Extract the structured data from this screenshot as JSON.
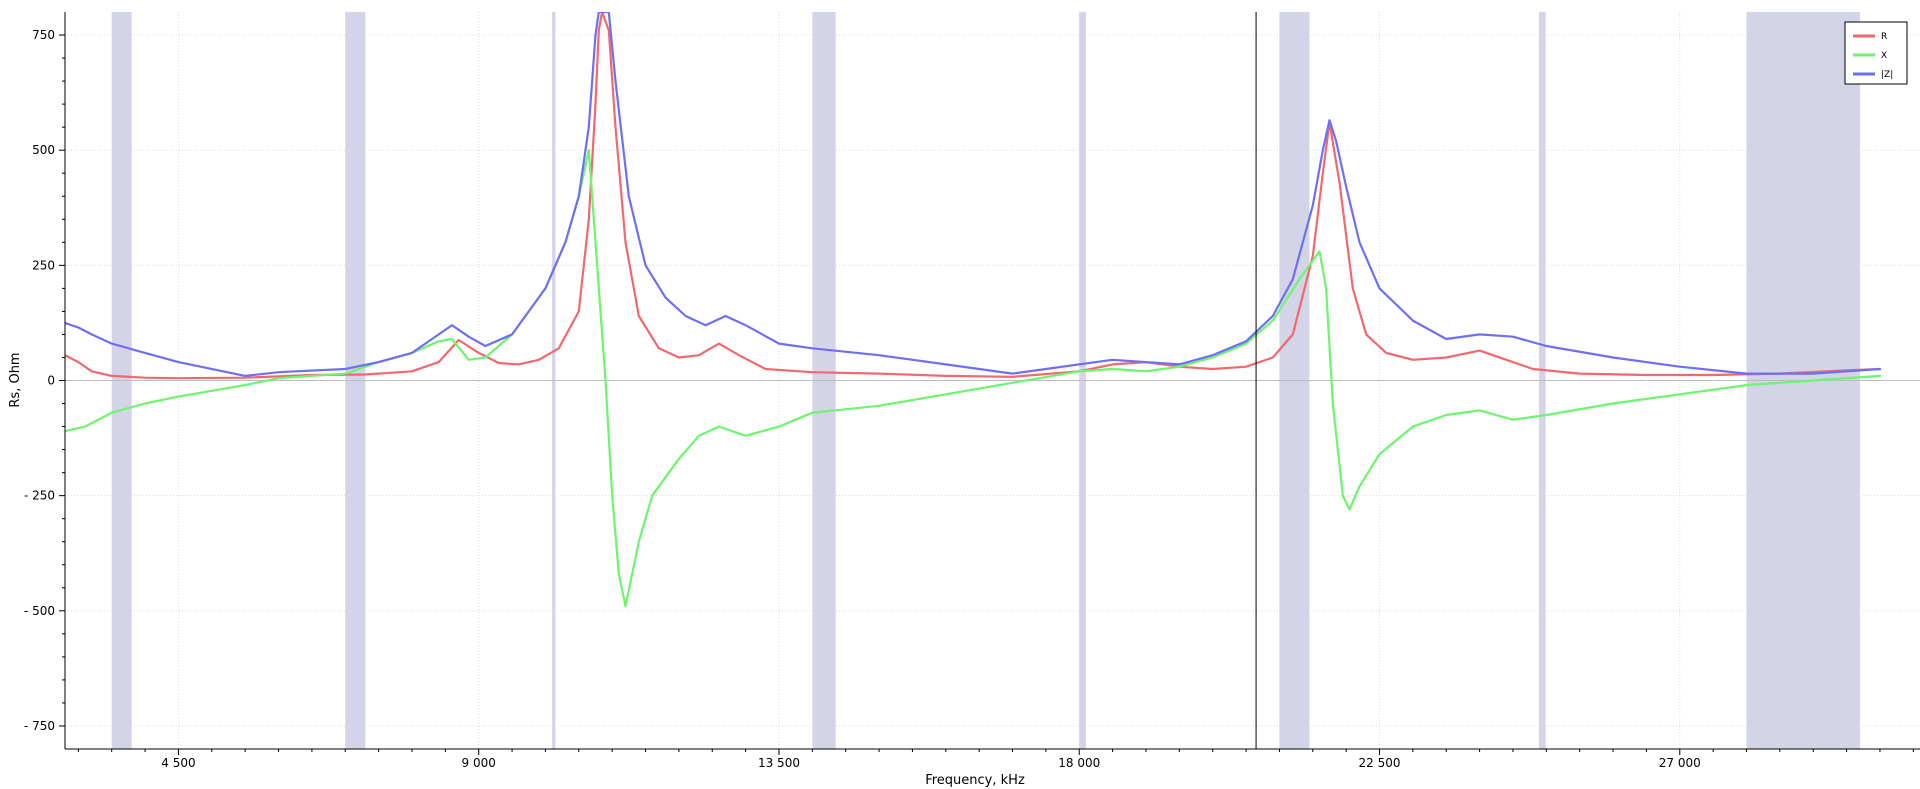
{
  "chart_data": {
    "type": "line",
    "xlabel": "Frequency, kHz",
    "ylabel": "Rs, Ohm",
    "xlim": [
      2800,
      30600
    ],
    "ylim": [
      -800,
      800
    ],
    "grid": true,
    "legend_position": "top-right",
    "x_ticks": [
      {
        "value": 4500,
        "label": "4 500"
      },
      {
        "value": 9000,
        "label": "9 000"
      },
      {
        "value": 13500,
        "label": "13 500"
      },
      {
        "value": 18000,
        "label": "18 000"
      },
      {
        "value": 22500,
        "label": "22 500"
      },
      {
        "value": 27000,
        "label": "27 000"
      }
    ],
    "y_ticks": [
      {
        "value": 750,
        "label": "750"
      },
      {
        "value": 500,
        "label": "500"
      },
      {
        "value": 250,
        "label": "250"
      },
      {
        "value": 0,
        "label": "0"
      },
      {
        "value": -250,
        "label": "- 250"
      },
      {
        "value": -500,
        "label": "- 500"
      },
      {
        "value": -750,
        "label": "- 750"
      }
    ],
    "bands": [
      [
        3500,
        3800
      ],
      [
        7000,
        7300
      ],
      [
        10100,
        10150
      ],
      [
        14000,
        14350
      ],
      [
        18000,
        18100
      ],
      [
        21000,
        21450
      ],
      [
        24890,
        24990
      ],
      [
        28000,
        29700
      ]
    ],
    "band_color": "#d3d4e8",
    "cursor_x": 20650,
    "series": [
      {
        "name": "R",
        "color": "#f2686e",
        "points": [
          [
            2800,
            55
          ],
          [
            3000,
            40
          ],
          [
            3200,
            20
          ],
          [
            3500,
            10
          ],
          [
            4000,
            6
          ],
          [
            4500,
            5
          ],
          [
            5500,
            6
          ],
          [
            6500,
            12
          ],
          [
            7300,
            13
          ],
          [
            8000,
            20
          ],
          [
            8400,
            40
          ],
          [
            8700,
            88
          ],
          [
            9000,
            60
          ],
          [
            9300,
            38
          ],
          [
            9600,
            35
          ],
          [
            9900,
            45
          ],
          [
            10200,
            70
          ],
          [
            10500,
            150
          ],
          [
            10650,
            350
          ],
          [
            10750,
            600
          ],
          [
            10800,
            760
          ],
          [
            10850,
            800
          ],
          [
            10950,
            760
          ],
          [
            11050,
            550
          ],
          [
            11200,
            300
          ],
          [
            11400,
            140
          ],
          [
            11700,
            70
          ],
          [
            12000,
            50
          ],
          [
            12300,
            55
          ],
          [
            12600,
            80
          ],
          [
            12900,
            55
          ],
          [
            13300,
            25
          ],
          [
            14000,
            18
          ],
          [
            15000,
            15
          ],
          [
            16000,
            10
          ],
          [
            17000,
            8
          ],
          [
            18000,
            20
          ],
          [
            18500,
            35
          ],
          [
            19000,
            40
          ],
          [
            19500,
            30
          ],
          [
            20000,
            25
          ],
          [
            20500,
            30
          ],
          [
            20900,
            50
          ],
          [
            21200,
            100
          ],
          [
            21500,
            270
          ],
          [
            21650,
            450
          ],
          [
            21750,
            560
          ],
          [
            21900,
            430
          ],
          [
            22100,
            200
          ],
          [
            22300,
            100
          ],
          [
            22600,
            60
          ],
          [
            23000,
            45
          ],
          [
            23500,
            50
          ],
          [
            24000,
            65
          ],
          [
            24400,
            45
          ],
          [
            24800,
            25
          ],
          [
            25500,
            15
          ],
          [
            26500,
            12
          ],
          [
            27500,
            12
          ],
          [
            28500,
            15
          ],
          [
            29500,
            22
          ],
          [
            30000,
            25
          ]
        ]
      },
      {
        "name": "X",
        "color": "#6ef56e",
        "points": [
          [
            2800,
            -110
          ],
          [
            3100,
            -100
          ],
          [
            3500,
            -70
          ],
          [
            4000,
            -50
          ],
          [
            4500,
            -35
          ],
          [
            5500,
            -10
          ],
          [
            6000,
            5
          ],
          [
            7000,
            15
          ],
          [
            7500,
            40
          ],
          [
            8000,
            60
          ],
          [
            8400,
            85
          ],
          [
            8600,
            90
          ],
          [
            8850,
            45
          ],
          [
            9100,
            50
          ],
          [
            9500,
            100
          ],
          [
            10000,
            200
          ],
          [
            10300,
            300
          ],
          [
            10500,
            400
          ],
          [
            10650,
            500
          ],
          [
            10750,
            300
          ],
          [
            10900,
            0
          ],
          [
            11000,
            -250
          ],
          [
            11100,
            -420
          ],
          [
            11200,
            -490
          ],
          [
            11400,
            -350
          ],
          [
            11600,
            -250
          ],
          [
            12000,
            -170
          ],
          [
            12300,
            -120
          ],
          [
            12600,
            -100
          ],
          [
            13000,
            -120
          ],
          [
            13500,
            -100
          ],
          [
            14000,
            -70
          ],
          [
            15000,
            -55
          ],
          [
            16000,
            -30
          ],
          [
            17000,
            -5
          ],
          [
            18000,
            20
          ],
          [
            18500,
            25
          ],
          [
            19000,
            20
          ],
          [
            19500,
            30
          ],
          [
            20000,
            50
          ],
          [
            20500,
            80
          ],
          [
            20900,
            130
          ],
          [
            21300,
            220
          ],
          [
            21600,
            280
          ],
          [
            21700,
            200
          ],
          [
            21800,
            -50
          ],
          [
            21950,
            -250
          ],
          [
            22050,
            -280
          ],
          [
            22200,
            -230
          ],
          [
            22500,
            -160
          ],
          [
            23000,
            -100
          ],
          [
            23500,
            -75
          ],
          [
            24000,
            -65
          ],
          [
            24500,
            -85
          ],
          [
            25000,
            -75
          ],
          [
            26000,
            -50
          ],
          [
            27000,
            -30
          ],
          [
            28000,
            -10
          ],
          [
            29000,
            0
          ],
          [
            30000,
            10
          ]
        ]
      },
      {
        "name": "|Z|",
        "color": "#6f6ff5",
        "points": [
          [
            2800,
            125
          ],
          [
            3000,
            115
          ],
          [
            3200,
            100
          ],
          [
            3500,
            80
          ],
          [
            4000,
            60
          ],
          [
            4500,
            40
          ],
          [
            5500,
            10
          ],
          [
            6000,
            18
          ],
          [
            7000,
            25
          ],
          [
            7500,
            40
          ],
          [
            8000,
            60
          ],
          [
            8400,
            100
          ],
          [
            8600,
            120
          ],
          [
            8850,
            95
          ],
          [
            9100,
            75
          ],
          [
            9500,
            100
          ],
          [
            10000,
            200
          ],
          [
            10300,
            300
          ],
          [
            10500,
            400
          ],
          [
            10650,
            550
          ],
          [
            10750,
            750
          ],
          [
            10800,
            800
          ],
          [
            10950,
            800
          ],
          [
            11050,
            650
          ],
          [
            11250,
            400
          ],
          [
            11500,
            250
          ],
          [
            11800,
            180
          ],
          [
            12100,
            140
          ],
          [
            12400,
            120
          ],
          [
            12700,
            140
          ],
          [
            13000,
            120
          ],
          [
            13500,
            80
          ],
          [
            14000,
            70
          ],
          [
            15000,
            55
          ],
          [
            16000,
            35
          ],
          [
            17000,
            15
          ],
          [
            18000,
            35
          ],
          [
            18500,
            45
          ],
          [
            19000,
            40
          ],
          [
            19500,
            35
          ],
          [
            20000,
            55
          ],
          [
            20500,
            85
          ],
          [
            20900,
            140
          ],
          [
            21200,
            220
          ],
          [
            21500,
            380
          ],
          [
            21650,
            500
          ],
          [
            21750,
            565
          ],
          [
            21850,
            520
          ],
          [
            22000,
            420
          ],
          [
            22200,
            300
          ],
          [
            22500,
            200
          ],
          [
            23000,
            130
          ],
          [
            23500,
            90
          ],
          [
            24000,
            100
          ],
          [
            24500,
            95
          ],
          [
            25000,
            75
          ],
          [
            26000,
            50
          ],
          [
            27000,
            30
          ],
          [
            28000,
            15
          ],
          [
            29000,
            15
          ],
          [
            30000,
            25
          ]
        ]
      }
    ]
  }
}
